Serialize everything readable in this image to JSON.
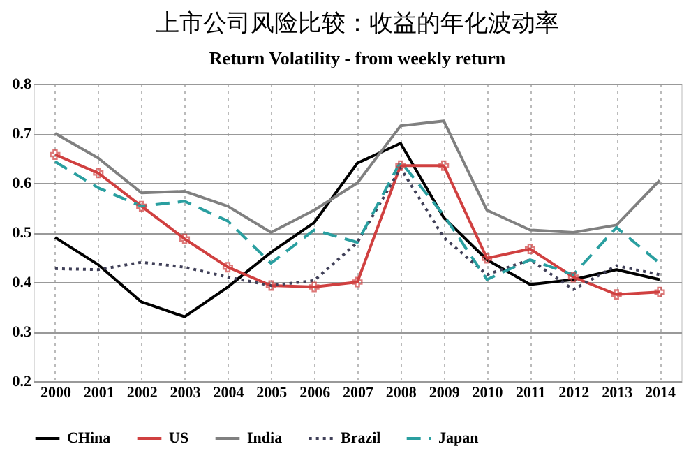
{
  "chart_data": {
    "type": "line",
    "title": "上市公司风险比较：收益的年化波动率",
    "subtitle": "Return Volatility - from weekly return",
    "categories": [
      "2000",
      "2001",
      "2002",
      "2003",
      "2004",
      "2005",
      "2006",
      "2007",
      "2008",
      "2009",
      "2010",
      "2011",
      "2012",
      "2013",
      "2014"
    ],
    "series": [
      {
        "name": "CHina",
        "color": "#000000",
        "line_style": "solid",
        "marker": "none",
        "values": [
          0.49,
          0.435,
          0.36,
          0.33,
          0.39,
          0.46,
          0.52,
          0.64,
          0.68,
          0.53,
          0.445,
          0.395,
          0.405,
          0.425,
          0.405
        ]
      },
      {
        "name": "US",
        "color": "#d04040",
        "line_style": "solid",
        "marker": "cross",
        "values": [
          0.657,
          0.62,
          0.553,
          0.487,
          0.43,
          0.393,
          0.39,
          0.4,
          0.635,
          0.635,
          0.448,
          0.467,
          0.41,
          0.375,
          0.38
        ]
      },
      {
        "name": "India",
        "color": "#808080",
        "line_style": "solid",
        "marker": "none",
        "values": [
          0.7,
          0.65,
          0.58,
          0.583,
          0.553,
          0.5,
          0.545,
          0.6,
          0.715,
          0.725,
          0.545,
          0.505,
          0.5,
          0.515,
          0.605
        ]
      },
      {
        "name": "Brazil",
        "color": "#404058",
        "line_style": "dotted",
        "marker": "none",
        "values": [
          0.427,
          0.425,
          0.44,
          0.43,
          0.41,
          0.393,
          0.403,
          0.48,
          0.63,
          0.49,
          0.415,
          0.445,
          0.385,
          0.433,
          0.415
        ]
      },
      {
        "name": "Japan",
        "color": "#2a9fa0",
        "line_style": "dashed",
        "marker": "none",
        "values": [
          0.643,
          0.59,
          0.553,
          0.563,
          0.523,
          0.438,
          0.505,
          0.48,
          0.643,
          0.535,
          0.405,
          0.445,
          0.415,
          0.51,
          0.438
        ]
      }
    ],
    "ylim": [
      0.2,
      0.8
    ],
    "yticks": [
      0.2,
      0.3,
      0.4,
      0.5,
      0.6,
      0.7,
      0.8
    ],
    "grid": true,
    "legend": "bottom"
  }
}
